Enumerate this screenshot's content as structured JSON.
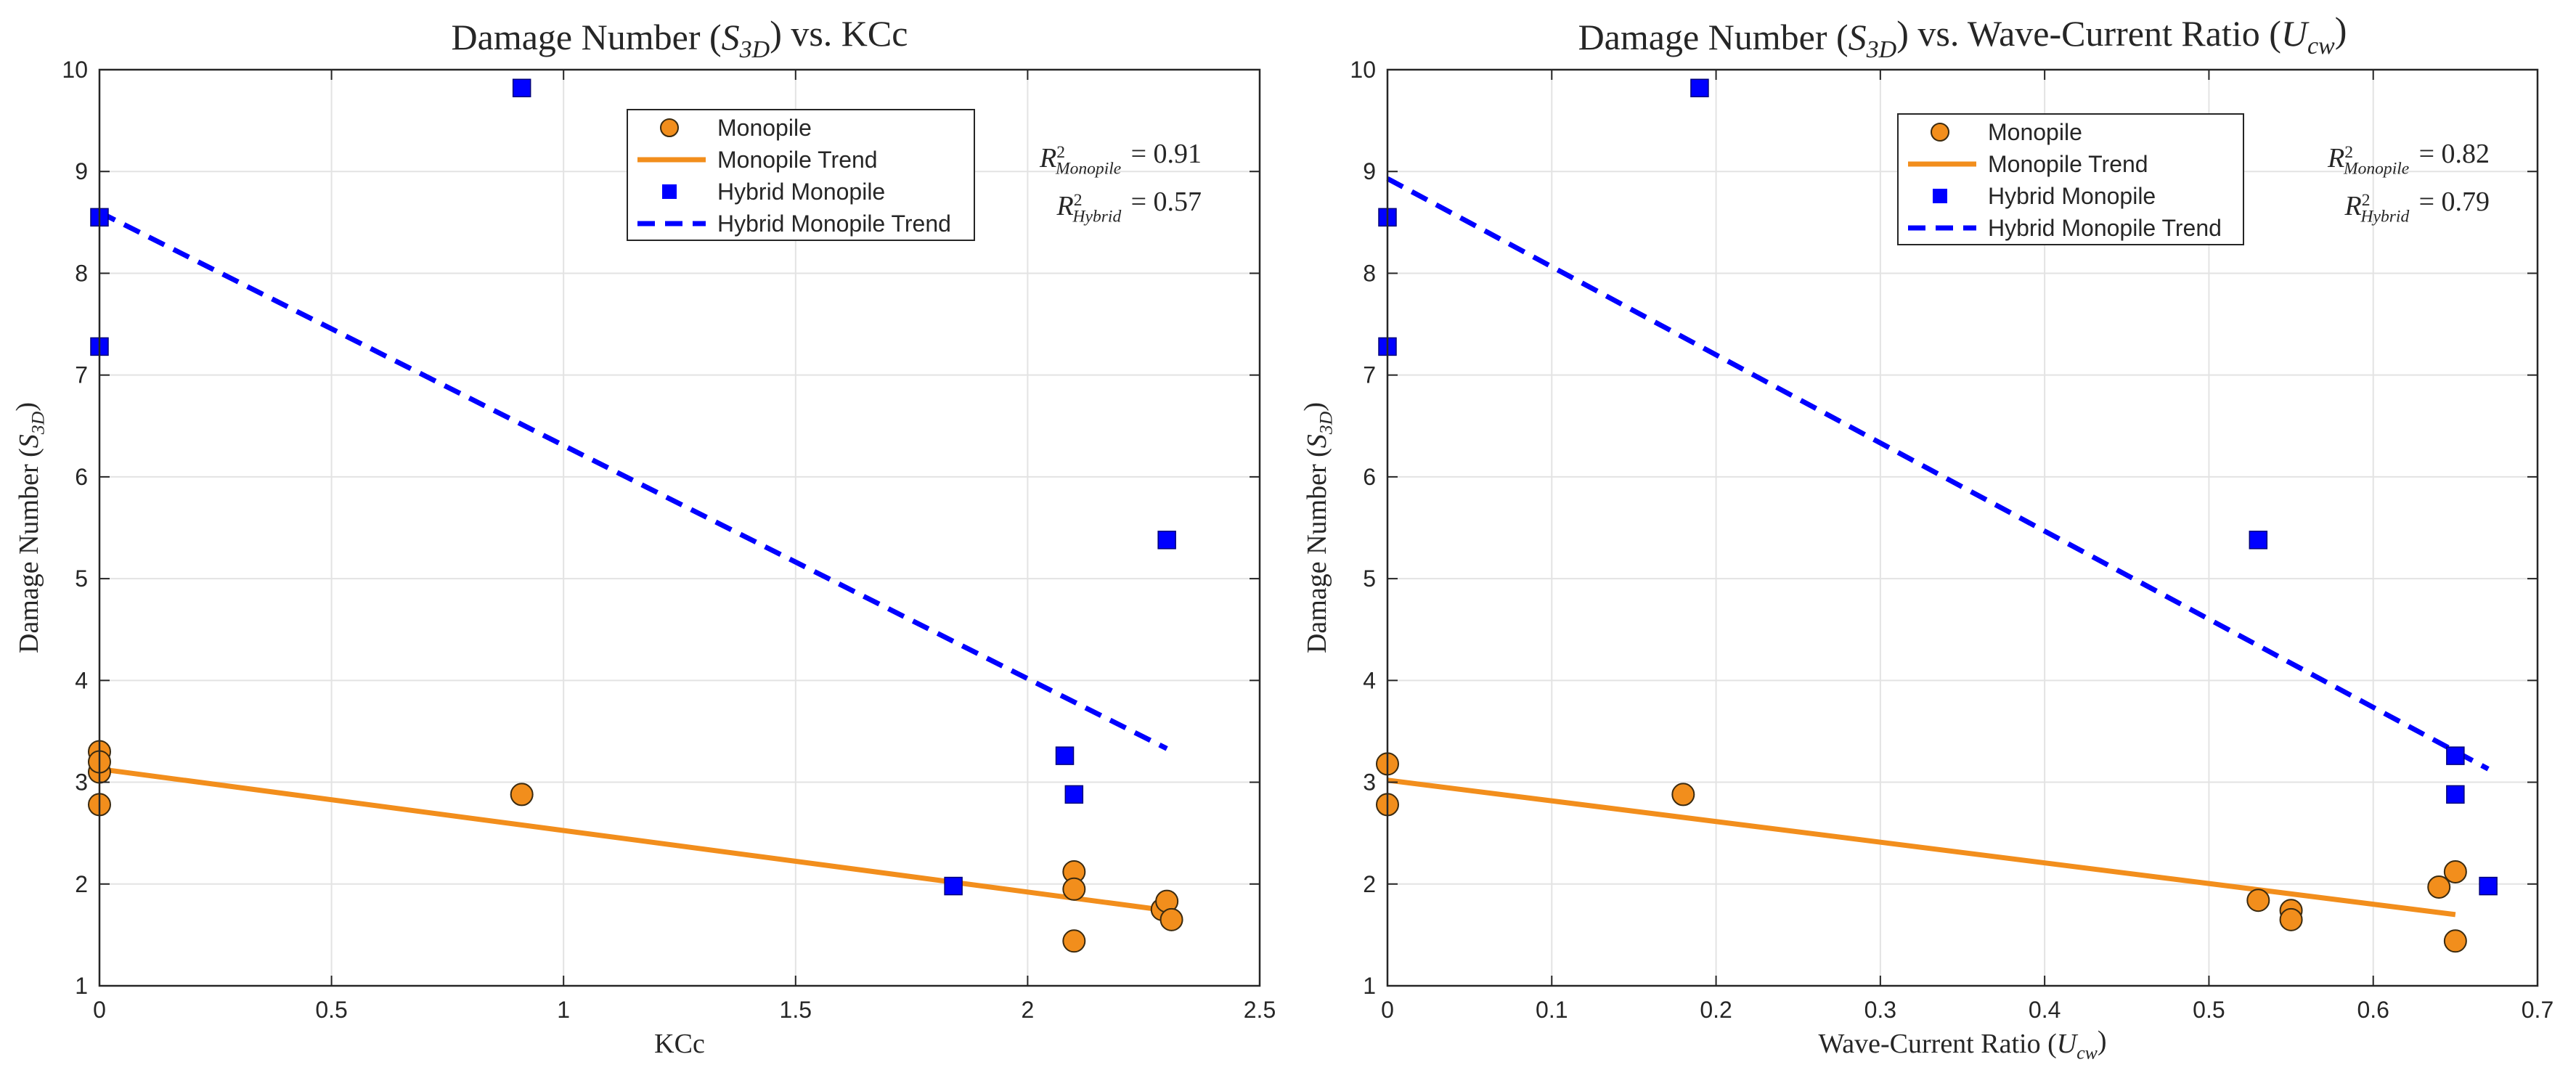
{
  "chart_data": [
    {
      "type": "scatter",
      "title": "Damage Number (S3D) vs. KCc",
      "title_parts": [
        "Damage Number (",
        "S",
        "3D",
        ") vs. KCc"
      ],
      "xlabel": "KCc",
      "xlabel_parts": [
        "KCc",
        "",
        "",
        ""
      ],
      "ylabel": "Damage Number (S3D)",
      "ylabel_parts": [
        "Damage Number (",
        "S",
        "3D",
        ")"
      ],
      "xlim": [
        0,
        2.5
      ],
      "ylim": [
        1,
        10
      ],
      "xticks": [
        0,
        0.5,
        1,
        1.5,
        2,
        2.5
      ],
      "xtick_labels": [
        "0",
        "0.5",
        "1",
        "1.5",
        "2",
        "2.5"
      ],
      "yticks": [
        1,
        2,
        3,
        4,
        5,
        6,
        7,
        8,
        9,
        10
      ],
      "ytick_labels": [
        "1",
        "2",
        "3",
        "4",
        "5",
        "6",
        "7",
        "8",
        "9",
        "10"
      ],
      "grid": true,
      "legend_position": "top-right",
      "series": [
        {
          "name": "Monopile",
          "kind": "scatter",
          "marker": "circle",
          "color": "#f28e1c",
          "x": [
            0,
            0,
            0,
            0,
            0.91,
            2.1,
            2.1,
            2.1,
            2.29,
            2.3,
            2.31
          ],
          "y": [
            3.3,
            3.1,
            3.2,
            2.78,
            2.88,
            2.12,
            1.95,
            1.44,
            1.75,
            1.83,
            1.65
          ]
        },
        {
          "name": "Monopile Trend",
          "kind": "line",
          "style": "solid",
          "color": "#f28e1c",
          "x": [
            0,
            2.3
          ],
          "y": [
            3.13,
            1.74
          ]
        },
        {
          "name": "Hybrid Monopile",
          "kind": "scatter",
          "marker": "square",
          "color": "#0000ff",
          "x": [
            0,
            0,
            0.91,
            1.84,
            2.08,
            2.1,
            2.3
          ],
          "y": [
            8.55,
            7.28,
            9.82,
            1.98,
            3.26,
            2.88,
            5.38
          ]
        },
        {
          "name": "Hybrid Monopile Trend",
          "kind": "line",
          "style": "dashed",
          "color": "#0000ff",
          "x": [
            0,
            2.3
          ],
          "y": [
            8.6,
            3.33
          ]
        }
      ],
      "annotations": [
        {
          "label": "Monopile",
          "text": "R2Monopile = 0.91",
          "parts": [
            "R",
            "2",
            "Monopile",
            "= 0.91"
          ]
        },
        {
          "label": "Hybrid",
          "text": "R2Hybrid = 0.57",
          "parts": [
            "R",
            "2",
            "Hybrid",
            "= 0.57"
          ]
        }
      ]
    },
    {
      "type": "scatter",
      "title": "Damage Number (S3D) vs. Wave-Current Ratio (Ucw)",
      "title_parts": [
        "Damage Number (",
        "S",
        "3D",
        ") vs. Wave-Current Ratio (",
        "U",
        "cw",
        ")"
      ],
      "xlabel": "Wave-Current Ratio (Ucw)",
      "xlabel_parts": [
        "Wave-Current Ratio (",
        "U",
        "cw",
        ")"
      ],
      "ylabel": "Damage Number (S3D)",
      "ylabel_parts": [
        "Damage Number (",
        "S",
        "3D",
        ")"
      ],
      "xlim": [
        0,
        0.7
      ],
      "ylim": [
        1,
        10
      ],
      "xticks": [
        0,
        0.1,
        0.2,
        0.3,
        0.4,
        0.5,
        0.6,
        0.7
      ],
      "xtick_labels": [
        "0",
        "0.1",
        "0.2",
        "0.3",
        "0.4",
        "0.5",
        "0.6",
        "0.7"
      ],
      "yticks": [
        1,
        2,
        3,
        4,
        5,
        6,
        7,
        8,
        9,
        10
      ],
      "ytick_labels": [
        "1",
        "2",
        "3",
        "4",
        "5",
        "6",
        "7",
        "8",
        "9",
        "10"
      ],
      "grid": true,
      "legend_position": "top-right",
      "series": [
        {
          "name": "Monopile",
          "kind": "scatter",
          "marker": "circle",
          "color": "#f28e1c",
          "x": [
            0,
            0,
            0.18,
            0.53,
            0.55,
            0.55,
            0.64,
            0.65,
            0.65
          ],
          "y": [
            3.18,
            2.78,
            2.88,
            1.84,
            1.74,
            1.65,
            1.97,
            2.12,
            1.44
          ]
        },
        {
          "name": "Monopile Trend",
          "kind": "line",
          "style": "solid",
          "color": "#f28e1c",
          "x": [
            0,
            0.65
          ],
          "y": [
            3.02,
            1.7
          ]
        },
        {
          "name": "Hybrid Monopile",
          "kind": "scatter",
          "marker": "square",
          "color": "#0000ff",
          "x": [
            0,
            0,
            0.19,
            0.53,
            0.65,
            0.65,
            0.67
          ],
          "y": [
            8.55,
            7.28,
            9.82,
            5.38,
            3.26,
            2.88,
            1.98
          ]
        },
        {
          "name": "Hybrid Monopile Trend",
          "kind": "line",
          "style": "dashed",
          "color": "#0000ff",
          "x": [
            0,
            0.67
          ],
          "y": [
            8.93,
            3.13
          ]
        }
      ],
      "annotations": [
        {
          "label": "Monopile",
          "text": "R2Monopile = 0.82",
          "parts": [
            "R",
            "2",
            "Monopile",
            "= 0.82"
          ]
        },
        {
          "label": "Hybrid",
          "text": "R2Hybrid = 0.79",
          "parts": [
            "R",
            "2",
            "Hybrid",
            "= 0.79"
          ]
        }
      ]
    }
  ]
}
